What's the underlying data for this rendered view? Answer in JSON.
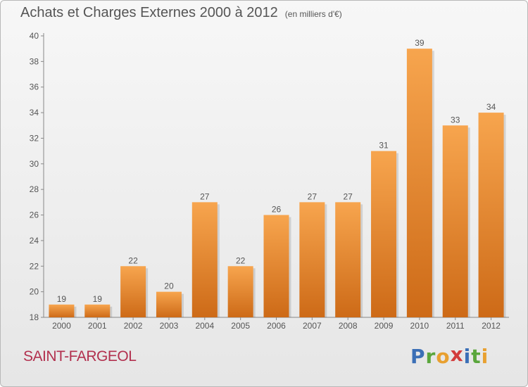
{
  "header": {
    "title": "Achats et Charges Externes 2000 à 2012",
    "unit": "(en milliers d'€)"
  },
  "footer": {
    "commune": "SAINT-FARGEOL",
    "logo_letters": [
      {
        "ch": "P",
        "color": "#3b6fb6"
      },
      {
        "ch": "r",
        "color": "#5aa63c"
      },
      {
        "ch": "o",
        "color": "#e8a030"
      },
      {
        "ch": "x",
        "color": "#d23c3c"
      },
      {
        "ch": "i",
        "color": "#3b6fb6"
      },
      {
        "ch": "t",
        "color": "#5aa63c"
      },
      {
        "ch": "i",
        "color": "#e8a030"
      }
    ]
  },
  "colors": {
    "bar_light": "#f7a54e",
    "bar_dark": "#cd6a17",
    "axis": "#888888",
    "text": "#555555"
  },
  "chart_data": {
    "type": "bar",
    "title": "Achats et Charges Externes 2000 à 2012",
    "subtitle": "(en milliers d'€)",
    "categories": [
      "2000",
      "2001",
      "2002",
      "2003",
      "2004",
      "2005",
      "2006",
      "2007",
      "2008",
      "2009",
      "2010",
      "2011",
      "2012"
    ],
    "values": [
      19,
      19,
      22,
      20,
      27,
      22,
      26,
      27,
      27,
      31,
      39,
      33,
      34
    ],
    "ylim": [
      18,
      40
    ],
    "yticks": [
      18,
      20,
      22,
      24,
      26,
      28,
      30,
      32,
      34,
      36,
      38,
      40
    ],
    "grid": false,
    "legend": "none"
  }
}
